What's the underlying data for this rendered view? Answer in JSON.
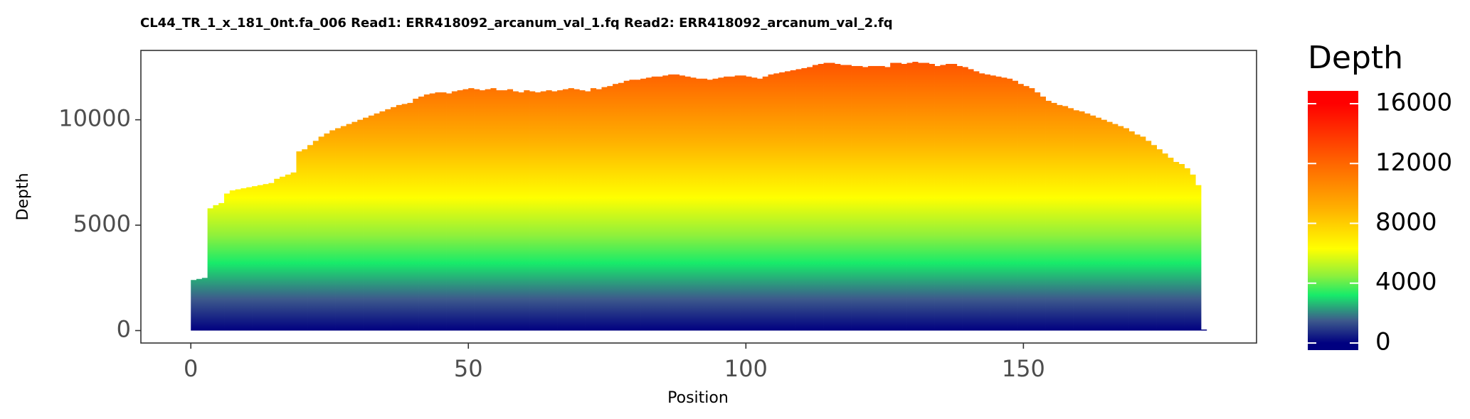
{
  "chart_data": {
    "type": "bar",
    "title": "CL44_TR_1_x_181_0nt.fa_006   Read1: ERR418092_arcanum_val_1.fq   Read2: ERR418092_arcanum_val_2.fq",
    "xlabel": "Position",
    "ylabel": "Depth",
    "legend_title": "Depth",
    "x": [
      0,
      1,
      2,
      3,
      4,
      5,
      6,
      7,
      8,
      9,
      10,
      11,
      12,
      13,
      14,
      15,
      16,
      17,
      18,
      19,
      20,
      21,
      22,
      23,
      24,
      25,
      26,
      27,
      28,
      29,
      30,
      31,
      32,
      33,
      34,
      35,
      36,
      37,
      38,
      39,
      40,
      41,
      42,
      43,
      44,
      45,
      46,
      47,
      48,
      49,
      50,
      51,
      52,
      53,
      54,
      55,
      56,
      57,
      58,
      59,
      60,
      61,
      62,
      63,
      64,
      65,
      66,
      67,
      68,
      69,
      70,
      71,
      72,
      73,
      74,
      75,
      76,
      77,
      78,
      79,
      80,
      81,
      82,
      83,
      84,
      85,
      86,
      87,
      88,
      89,
      90,
      91,
      92,
      93,
      94,
      95,
      96,
      97,
      98,
      99,
      100,
      101,
      102,
      103,
      104,
      105,
      106,
      107,
      108,
      109,
      110,
      111,
      112,
      113,
      114,
      115,
      116,
      117,
      118,
      119,
      120,
      121,
      122,
      123,
      124,
      125,
      126,
      127,
      128,
      129,
      130,
      131,
      132,
      133,
      134,
      135,
      136,
      137,
      138,
      139,
      140,
      141,
      142,
      143,
      144,
      145,
      146,
      147,
      148,
      149,
      150,
      151,
      152,
      153,
      154,
      155,
      156,
      157,
      158,
      159,
      160,
      161,
      162,
      163,
      164,
      165,
      166,
      167,
      168,
      169,
      170,
      171,
      172,
      173,
      174,
      175,
      176,
      177,
      178,
      179,
      180,
      181,
      182
    ],
    "values": [
      2400,
      2450,
      2500,
      5800,
      5950,
      6050,
      6500,
      6650,
      6700,
      6750,
      6800,
      6850,
      6900,
      6950,
      7000,
      7200,
      7300,
      7400,
      7500,
      8500,
      8600,
      8800,
      9000,
      9200,
      9350,
      9500,
      9600,
      9700,
      9800,
      9900,
      10000,
      10100,
      10200,
      10300,
      10400,
      10500,
      10600,
      10700,
      10750,
      10800,
      11000,
      11100,
      11200,
      11250,
      11300,
      11300,
      11250,
      11350,
      11400,
      11450,
      11500,
      11450,
      11400,
      11450,
      11500,
      11400,
      11400,
      11450,
      11350,
      11300,
      11400,
      11350,
      11300,
      11350,
      11400,
      11350,
      11400,
      11450,
      11500,
      11450,
      11400,
      11350,
      11500,
      11450,
      11550,
      11600,
      11700,
      11750,
      11850,
      11900,
      11900,
      11950,
      12000,
      12050,
      12050,
      12100,
      12150,
      12150,
      12100,
      12050,
      12000,
      11950,
      11950,
      11900,
      11950,
      12000,
      12050,
      12050,
      12100,
      12100,
      12050,
      12000,
      11950,
      12050,
      12150,
      12200,
      12250,
      12300,
      12350,
      12400,
      12450,
      12500,
      12600,
      12650,
      12700,
      12700,
      12650,
      12600,
      12600,
      12550,
      12550,
      12500,
      12550,
      12550,
      12550,
      12500,
      12700,
      12700,
      12650,
      12700,
      12750,
      12700,
      12700,
      12650,
      12550,
      12600,
      12650,
      12650,
      12550,
      12500,
      12400,
      12300,
      12200,
      12150,
      12100,
      12050,
      12000,
      11950,
      11850,
      11700,
      11600,
      11500,
      11300,
      11100,
      10900,
      10800,
      10700,
      10650,
      10550,
      10450,
      10400,
      10300,
      10200,
      10100,
      10000,
      9900,
      9800,
      9700,
      9600,
      9450,
      9300,
      9200,
      9000,
      8800,
      8600,
      8400,
      8200,
      8000,
      7900,
      7700,
      7400,
      6900,
      30
    ],
    "xlim": [
      -9,
      192
    ],
    "xticks": [
      0,
      50,
      100,
      150
    ],
    "ylim": [
      -590,
      13290
    ],
    "yticks": [
      0,
      5000,
      10000
    ],
    "colorbar_lim": [
      -475,
      16855
    ],
    "colorbar_ticks": [
      0,
      4000,
      8000,
      12000,
      16000
    ],
    "colorscale": [
      {
        "value": 0,
        "color": "#000080"
      },
      {
        "value": 1500,
        "color": "#3d5a8c"
      },
      {
        "value": 3200,
        "color": "#17eb6a"
      },
      {
        "value": 4500,
        "color": "#8ef03c"
      },
      {
        "value": 6300,
        "color": "#ffff00"
      },
      {
        "value": 9000,
        "color": "#ffb000"
      },
      {
        "value": 12000,
        "color": "#ff6600"
      },
      {
        "value": 16000,
        "color": "#ff0000"
      }
    ],
    "grid": false
  }
}
